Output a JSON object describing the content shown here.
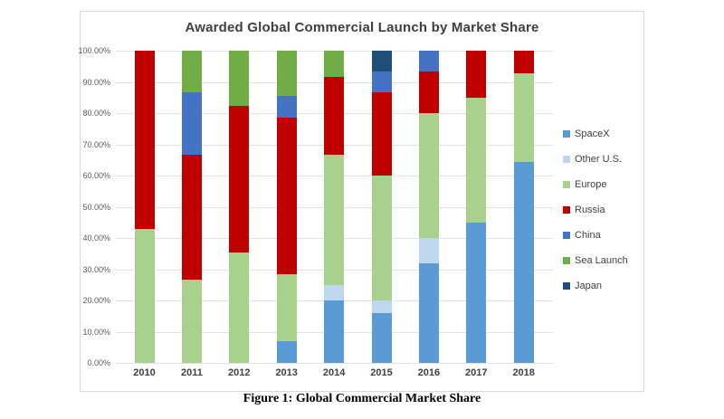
{
  "caption": "Figure 1: Global Commercial Market Share",
  "chart_data": {
    "type": "bar",
    "stacked": true,
    "title": "Awarded Global Commercial Launch by Market Share",
    "xlabel": "",
    "ylabel": "",
    "ylim": [
      0,
      100
    ],
    "grid": true,
    "legend_position": "right",
    "y_tick_labels": [
      "0.00%",
      "10.00%",
      "20.00%",
      "30.00%",
      "40.00%",
      "50.00%",
      "60.00%",
      "70.00%",
      "80.00%",
      "90.00%",
      "100.00%"
    ],
    "categories": [
      "2010",
      "2011",
      "2012",
      "2013",
      "2014",
      "2015",
      "2016",
      "2017",
      "2018"
    ],
    "series": [
      {
        "name": "SpaceX",
        "color": "#5B9BD5",
        "values": [
          0,
          0,
          0,
          7.1,
          20,
          16,
          32,
          45,
          64.3
        ]
      },
      {
        "name": "Other U.S.",
        "color": "#BDD7EE",
        "values": [
          0,
          0,
          0,
          0,
          5,
          4,
          8,
          0,
          0
        ]
      },
      {
        "name": "Europe",
        "color": "#A9D18E",
        "values": [
          42.9,
          26.7,
          35.3,
          21.4,
          41.7,
          40,
          40,
          40,
          28.6
        ]
      },
      {
        "name": "Russia",
        "color": "#C00000",
        "values": [
          57.1,
          40,
          47.1,
          50,
          25,
          26.7,
          13.3,
          15,
          7.1
        ]
      },
      {
        "name": "China",
        "color": "#4472C4",
        "values": [
          0,
          20,
          0,
          7.1,
          0,
          6.7,
          6.7,
          0,
          0
        ]
      },
      {
        "name": "Sea Launch",
        "color": "#70AD47",
        "values": [
          0,
          13.3,
          17.6,
          14.4,
          8.3,
          0,
          0,
          0,
          0
        ]
      },
      {
        "name": "Japan",
        "color": "#1F4E79",
        "values": [
          0,
          0,
          0,
          0,
          0,
          6.6,
          0,
          0,
          0
        ]
      }
    ]
  }
}
